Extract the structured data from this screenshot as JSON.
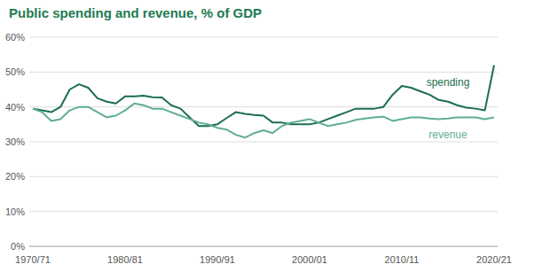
{
  "chart_data": {
    "type": "line",
    "title": "Public spending and revenue, % of GDP",
    "categories": [
      "1970/71",
      null,
      null,
      null,
      null,
      null,
      null,
      null,
      null,
      null,
      "1980/81",
      null,
      null,
      null,
      null,
      null,
      null,
      null,
      null,
      null,
      "1990/91",
      null,
      null,
      null,
      null,
      null,
      null,
      null,
      null,
      null,
      "2000/01",
      null,
      null,
      null,
      null,
      null,
      null,
      null,
      null,
      null,
      "2010/11",
      null,
      null,
      null,
      null,
      null,
      null,
      null,
      null,
      null,
      "2020/21"
    ],
    "series": [
      {
        "name": "spending",
        "color": "#1b6e4b",
        "values": [
          39.5,
          39,
          38.5,
          40,
          45,
          46.5,
          45.5,
          42.5,
          41.5,
          41,
          43,
          43,
          43.2,
          42.8,
          42.7,
          40.5,
          39.5,
          37,
          34.5,
          34.5,
          35,
          36.8,
          38.5,
          38,
          37.7,
          37.5,
          35.5,
          35.5,
          35,
          35,
          35,
          35.5,
          36.5,
          37.5,
          38.5,
          39.5,
          39.5,
          39.5,
          40,
          43.5,
          46,
          45.5,
          44.5,
          43.5,
          42,
          41.5,
          40.5,
          39.8,
          39.5,
          39,
          52
        ]
      },
      {
        "name": "revenue",
        "color": "#5fae94",
        "values": [
          39.5,
          38.5,
          36,
          36.5,
          39,
          40,
          40,
          38.5,
          37,
          37.5,
          39,
          41,
          40.5,
          39.5,
          39.5,
          38.5,
          37.5,
          36.5,
          35.5,
          35,
          34,
          33.5,
          32,
          31.2,
          32.5,
          33.3,
          32.5,
          34.5,
          35.5,
          36,
          36.5,
          35.5,
          34.5,
          35,
          35.5,
          36.3,
          36.7,
          37,
          37.2,
          36,
          36.5,
          37,
          37,
          36.7,
          36.5,
          36.7,
          37,
          37,
          37,
          36.5,
          37
        ]
      }
    ],
    "ylim": [
      0,
      60
    ],
    "yticks": [
      {
        "value": 0,
        "label": "0%"
      },
      {
        "value": 10,
        "label": "10%"
      },
      {
        "value": 20,
        "label": "20%"
      },
      {
        "value": 30,
        "label": "30%"
      },
      {
        "value": 40,
        "label": "40%"
      },
      {
        "value": 50,
        "label": "50%"
      },
      {
        "value": 60,
        "label": "60%"
      }
    ],
    "grid": true
  }
}
